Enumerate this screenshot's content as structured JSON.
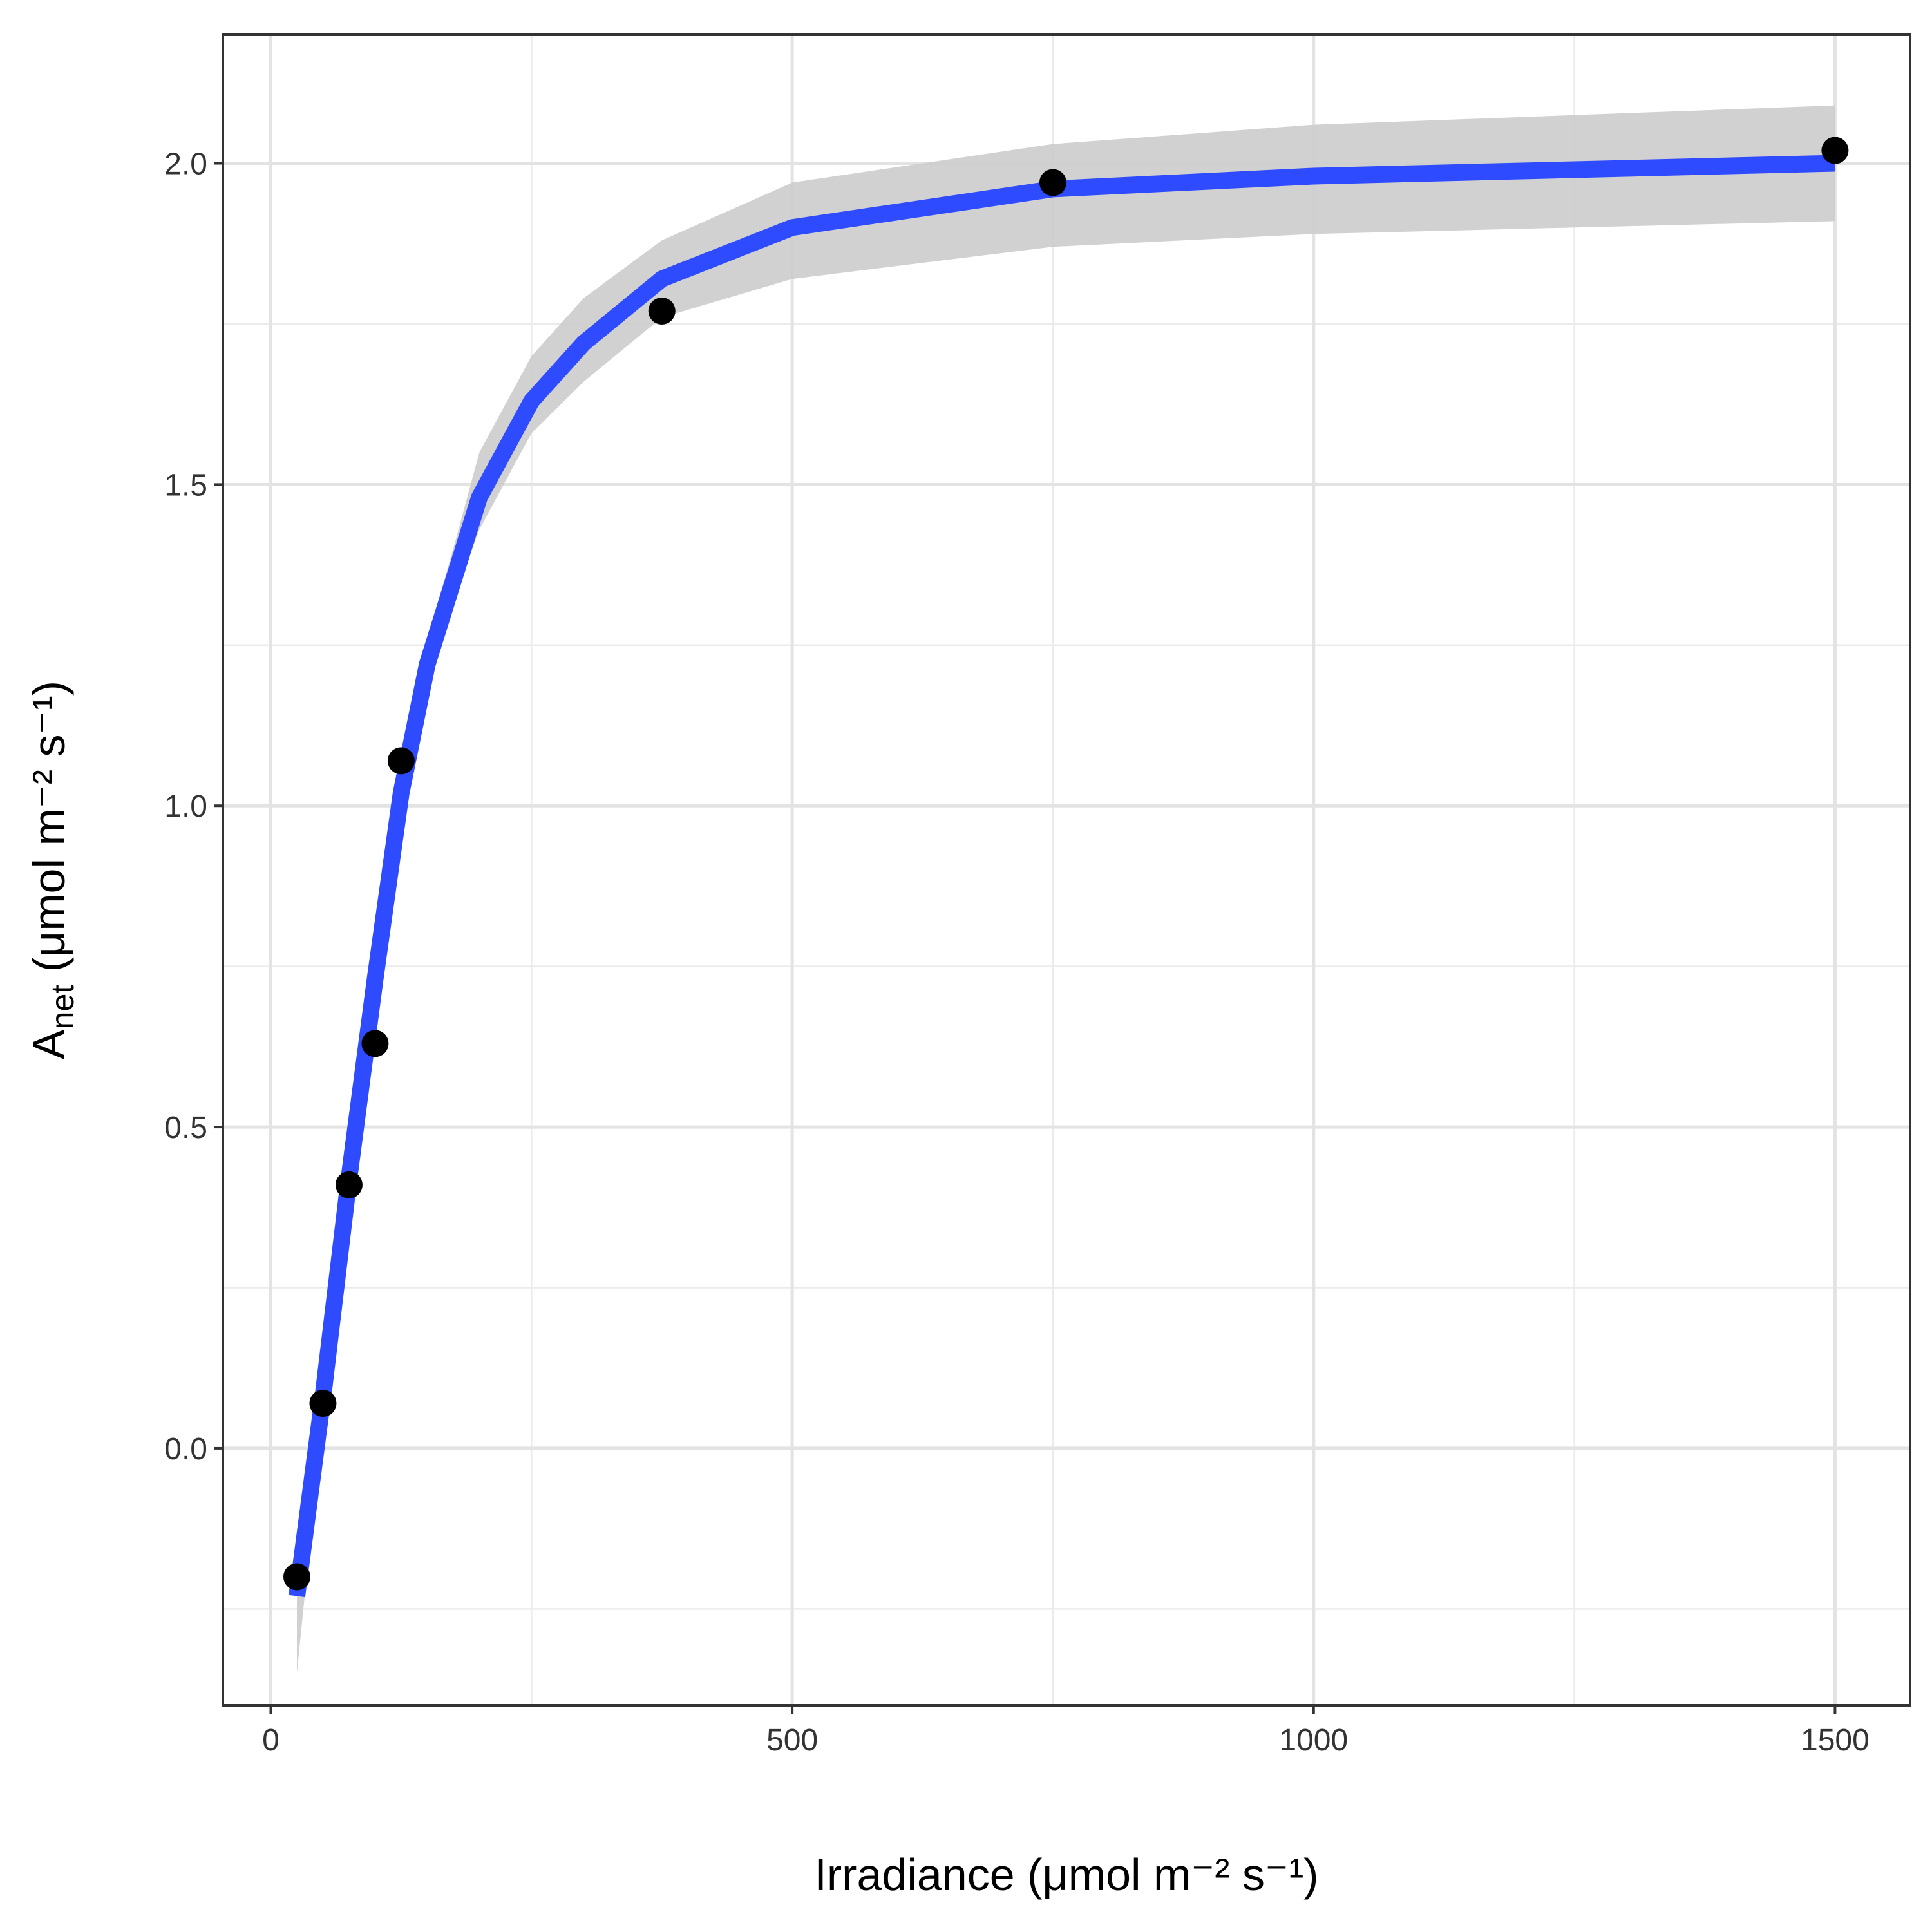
{
  "chart_data": {
    "type": "scatter",
    "xlabel": "Irradiance (μmol m⁻² s⁻¹)",
    "ylabel": [
      "A",
      "net",
      " (μmol m⁻² s⁻¹)"
    ],
    "xlim": [
      -46,
      1572
    ],
    "ylim": [
      -0.4,
      2.2
    ],
    "xticks": [
      0,
      500,
      1000,
      1500
    ],
    "yticks": [
      {
        "value": 0,
        "label": "0.0"
      },
      {
        "value": 0.5,
        "label": "0.5"
      },
      {
        "value": 1,
        "label": "1.0"
      },
      {
        "value": 1.5,
        "label": "1.5"
      },
      {
        "value": 2,
        "label": "2.0"
      }
    ],
    "xminor": [
      250,
      750,
      1250
    ],
    "yminor": [
      -0.25,
      0.25,
      0.75,
      1.25,
      1.75
    ],
    "grid": true,
    "series": [
      {
        "type": "line",
        "color": "#2e4bff",
        "band_color": "#cccccc",
        "x": [
          25,
          50,
          75,
          100,
          125,
          150,
          175,
          200,
          250,
          300,
          375,
          500,
          750,
          1000,
          1500
        ],
        "values": [
          -0.23,
          0.08,
          0.42,
          0.73,
          1.02,
          1.22,
          1.35,
          1.48,
          1.63,
          1.72,
          1.82,
          1.9,
          1.96,
          1.98,
          2.0
        ],
        "lower": [
          -0.35,
          0.05,
          0.39,
          0.7,
          0.99,
          1.19,
          1.32,
          1.43,
          1.58,
          1.66,
          1.76,
          1.82,
          1.87,
          1.89,
          1.91
        ],
        "upper": [
          -0.22,
          0.11,
          0.45,
          0.76,
          1.06,
          1.26,
          1.4,
          1.55,
          1.7,
          1.79,
          1.88,
          1.97,
          2.03,
          2.06,
          2.09
        ]
      },
      {
        "type": "scatter",
        "color": "#000000",
        "x": [
          25,
          50,
          75,
          100,
          125,
          375,
          750,
          1500
        ],
        "values": [
          -0.2,
          0.07,
          0.41,
          0.63,
          1.07,
          1.77,
          1.97,
          2.02
        ]
      }
    ]
  }
}
